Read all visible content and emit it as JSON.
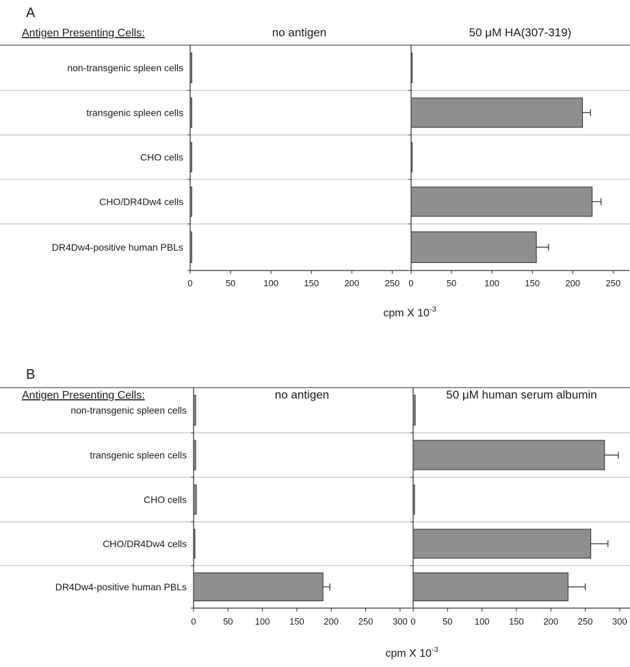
{
  "colors": {
    "bar_fill": "#8f8f8f",
    "bar_stroke": "#2a2a2a",
    "axis": "#2a2a2a",
    "separator": "#b5b5b5"
  },
  "chart_data": [
    {
      "type": "bar",
      "orientation": "horizontal",
      "panel_label": "A",
      "row_header": "Antigen Presenting Cells:",
      "categories": [
        "non-transgenic spleen cells",
        "transgenic spleen cells",
        "CHO cells",
        "CHO/DR4Dw4 cells",
        "DR4Dw4-positive human PBLs"
      ],
      "xlabel": "cpm X 10",
      "xlabel_exponent": "-3",
      "xlim": [
        0,
        270
      ],
      "xticks": [
        0,
        50,
        100,
        150,
        200,
        250
      ],
      "error_bars": true,
      "series": [
        {
          "name": "no antigen",
          "values": [
            2,
            2,
            2,
            2,
            2
          ],
          "errors": [
            0,
            0,
            0,
            0,
            0
          ]
        },
        {
          "name": "50 μM HA(307-319)",
          "values": [
            1,
            212,
            1,
            224,
            155
          ],
          "errors": [
            0,
            10,
            0,
            11,
            15
          ]
        }
      ]
    },
    {
      "type": "bar",
      "orientation": "horizontal",
      "panel_label": "B",
      "row_header": "Antigen Presenting Cells:",
      "categories": [
        "non-transgenic spleen cells",
        "transgenic spleen cells",
        "CHO cells",
        "CHO/DR4Dw4 cells",
        "DR4Dw4-positive human PBLs"
      ],
      "xlabel": "cpm X 10",
      "xlabel_exponent": "-3",
      "xlim": [
        0,
        315
      ],
      "xticks": [
        0,
        50,
        100,
        150,
        200,
        250,
        300
      ],
      "error_bars": true,
      "series": [
        {
          "name": "no antigen",
          "values": [
            3,
            3,
            4,
            2,
            188
          ],
          "errors": [
            0,
            0,
            0,
            0,
            10
          ]
        },
        {
          "name": "50 μM human serum albumin",
          "values": [
            3,
            278,
            2,
            258,
            225
          ],
          "errors": [
            0,
            20,
            0,
            25,
            25
          ]
        }
      ]
    }
  ]
}
